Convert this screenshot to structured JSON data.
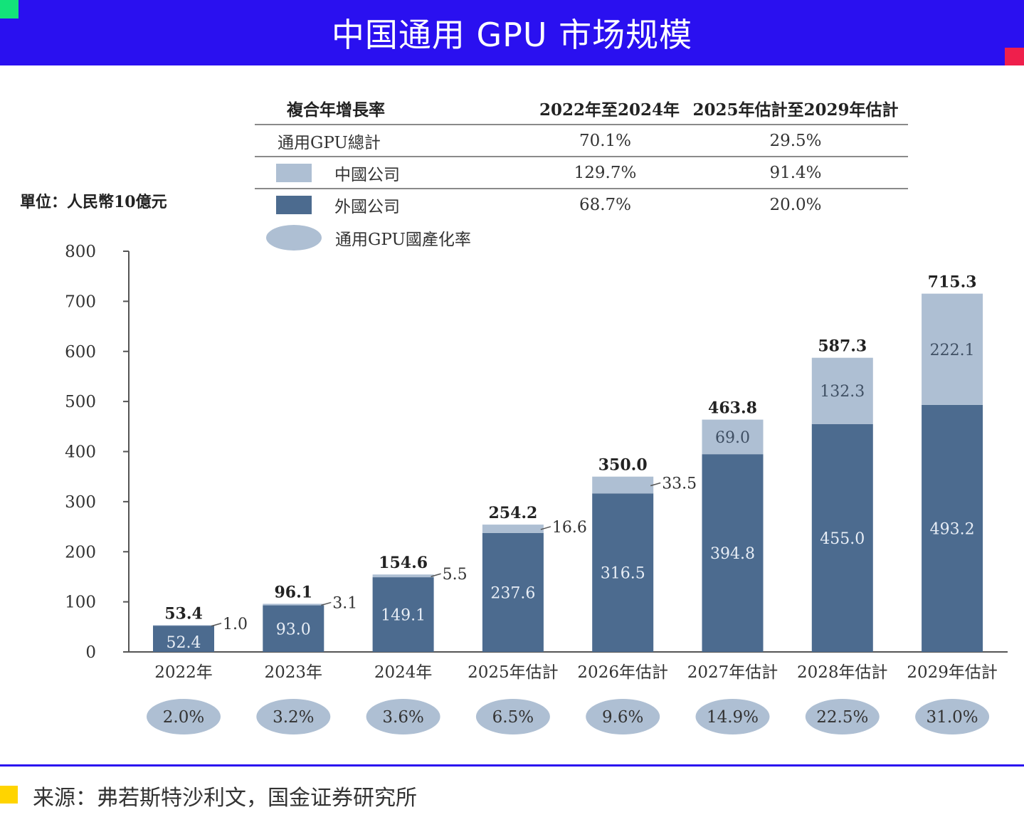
{
  "header": {
    "title": "中国通用 GPU 市场规模"
  },
  "cagr_table": {
    "header": {
      "label": "複合年增長率",
      "col1": "2022年至2024年",
      "col2": "2025年估計至2029年估計"
    },
    "rows": [
      {
        "label": "通用GPU總計",
        "v1": "70.1%",
        "v2": "29.5%"
      },
      {
        "label": "中國公司",
        "v1": "129.7%",
        "v2": "91.4%",
        "color": "#aebfd3"
      },
      {
        "label": "外國公司",
        "v1": "68.7%",
        "v2": "20.0%",
        "color": "#4c6b8f"
      }
    ],
    "ellipse_legend": "通用GPU國產化率"
  },
  "unit_label": "單位：人民幣10億元",
  "chart_data": {
    "type": "bar",
    "stacked": true,
    "categories": [
      "2022年",
      "2023年",
      "2024年",
      "2025年估計",
      "2026年估計",
      "2027年估計",
      "2028年估計",
      "2029年估計"
    ],
    "series": [
      {
        "name": "外國公司",
        "values": [
          52.4,
          93.0,
          149.1,
          237.6,
          316.5,
          394.8,
          455.0,
          493.2
        ],
        "color": "#4c6b8f"
      },
      {
        "name": "中國公司",
        "values": [
          1.0,
          3.1,
          5.5,
          16.6,
          33.5,
          69.0,
          132.3,
          222.1
        ],
        "color": "#aebfd3"
      }
    ],
    "series_labels": [
      [
        "52.4",
        "93.0",
        "149.1",
        "237.6",
        "316.5",
        "394.8",
        "455.0",
        "493.2"
      ],
      [
        "1.0",
        "3.1",
        "5.5",
        "16.6",
        "33.5",
        "69.0",
        "132.3",
        "222.1"
      ]
    ],
    "totals": [
      "53.4",
      "96.1",
      "154.6",
      "254.2",
      "350.0",
      "463.8",
      "587.3",
      "715.3"
    ],
    "localization_rate": [
      "2.0%",
      "3.2%",
      "3.6%",
      "6.5%",
      "9.6%",
      "14.9%",
      "22.5%",
      "31.0%"
    ],
    "ylim": [
      0,
      800
    ],
    "yticks": [
      0,
      100,
      200,
      300,
      400,
      500,
      600,
      700,
      800
    ],
    "grid": false
  },
  "footer": {
    "source": "来源：弗若斯特沙利文，国金证券研究所"
  }
}
